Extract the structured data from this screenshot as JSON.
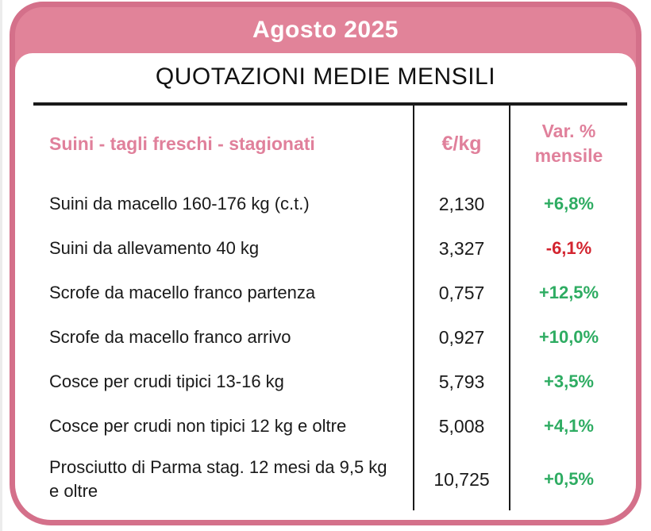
{
  "header": {
    "month_title": "Agosto 2025"
  },
  "page_title": "QUOTAZIONI MEDIE MENSILI",
  "table": {
    "columns": {
      "label": "Suini - tagli freschi - stagionati",
      "unit": "€/kg",
      "var_line1": "Var. %",
      "var_line2": "mensile"
    },
    "rows": [
      {
        "label": "Suini da macello 160-176 kg (c.t.)",
        "price": "2,130",
        "var": "+6,8%",
        "trend": "up"
      },
      {
        "label": "Suini da allevamento 40 kg",
        "price": "3,327",
        "var": "-6,1%",
        "trend": "down"
      },
      {
        "label": "Scrofe da macello franco partenza",
        "price": "0,757",
        "var": "+12,5%",
        "trend": "up"
      },
      {
        "label": "Scrofe da macello franco arrivo",
        "price": "0,927",
        "var": "+10,0%",
        "trend": "up"
      },
      {
        "label": "Cosce per crudi tipici 13-16 kg",
        "price": "5,793",
        "var": "+3,5%",
        "trend": "up"
      },
      {
        "label": "Cosce per crudi non tipici 12 kg e oltre",
        "price": "5,008",
        "var": "+4,1%",
        "trend": "up"
      },
      {
        "label": "Prosciutto di Parma stag. 12 mesi da 9,5 kg e oltre",
        "price": "10,725",
        "var": "+0,5%",
        "trend": "up"
      }
    ]
  },
  "colors": {
    "pink_band": "#e18399",
    "pink_border": "#d4708a",
    "pink_text": "#e0809b",
    "green": "#2eac62",
    "red": "#d3242f"
  }
}
